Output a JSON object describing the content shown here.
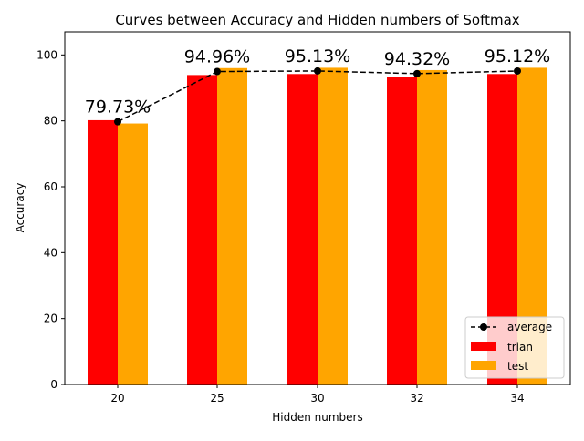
{
  "chart_data": {
    "type": "bar",
    "title": "Curves between Accuracy and Hidden numbers of Softmax",
    "xlabel": "Hidden numbers",
    "ylabel": "Accuracy",
    "categories": [
      "20",
      "25",
      "30",
      "32",
      "34"
    ],
    "ylim": [
      0,
      107
    ],
    "yticks": [
      0,
      20,
      40,
      60,
      80,
      100
    ],
    "grid": false,
    "legend_position": "lower-right",
    "series": [
      {
        "name": "trian",
        "type": "bar",
        "color": "#ff0000",
        "values": [
          80.2,
          93.9,
          94.2,
          93.3,
          94.2
        ]
      },
      {
        "name": "test",
        "type": "bar",
        "color": "#ffa500",
        "values": [
          79.2,
          96.0,
          96.1,
          95.4,
          96.1
        ]
      },
      {
        "name": "average",
        "type": "line",
        "style": "dashed",
        "marker": "circle",
        "color": "#000000",
        "values": [
          79.73,
          94.96,
          95.13,
          94.32,
          95.12
        ]
      }
    ],
    "annotations": [
      "79.73%",
      "94.96%",
      "95.13%",
      "94.32%",
      "95.12%"
    ]
  }
}
